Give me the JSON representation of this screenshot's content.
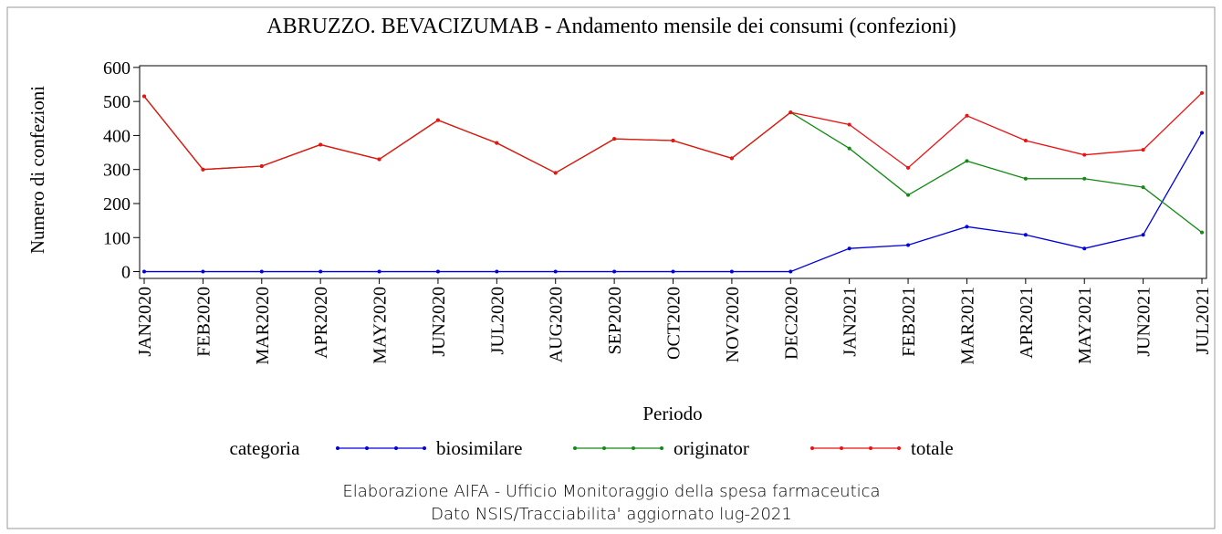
{
  "chart_data": {
    "type": "line",
    "title": "ABRUZZO. BEVACIZUMAB - Andamento mensile dei consumi (confezioni)",
    "x_label": "Periodo",
    "y_label": "Numero di confezioni",
    "legend_title": "categoria",
    "footer": [
      "Elaborazione AIFA - Ufficio Monitoraggio della spesa farmaceutica",
      "Dato NSIS/Tracciabilita' aggiornato lug-2021"
    ],
    "categories": [
      "JAN2020",
      "FEB2020",
      "MAR2020",
      "APR2020",
      "MAY2020",
      "JUN2020",
      "JUL2020",
      "AUG2020",
      "SEP2020",
      "OCT2020",
      "NOV2020",
      "DEC2020",
      "JAN2021",
      "FEB2021",
      "MAR2021",
      "APR2021",
      "MAY2021",
      "JUN2021",
      "JUL2021"
    ],
    "series": [
      {
        "name": "biosimilare",
        "color": "#0000dd",
        "values": [
          0,
          0,
          0,
          0,
          0,
          0,
          0,
          0,
          0,
          0,
          0,
          0,
          68,
          78,
          132,
          108,
          68,
          108,
          408
        ]
      },
      {
        "name": "originator",
        "color": "#138a13",
        "values": [
          515,
          300,
          310,
          373,
          330,
          445,
          378,
          290,
          390,
          385,
          333,
          468,
          362,
          225,
          325,
          273,
          273,
          248,
          115
        ]
      },
      {
        "name": "totale",
        "color": "#ee1111",
        "values": [
          515,
          300,
          310,
          373,
          330,
          445,
          378,
          290,
          390,
          385,
          333,
          468,
          432,
          305,
          458,
          385,
          343,
          358,
          525
        ]
      }
    ],
    "ylim": [
      -20,
      605
    ],
    "yticks": [
      0,
      100,
      200,
      300,
      400,
      500,
      600
    ],
    "legend": "bottom"
  }
}
